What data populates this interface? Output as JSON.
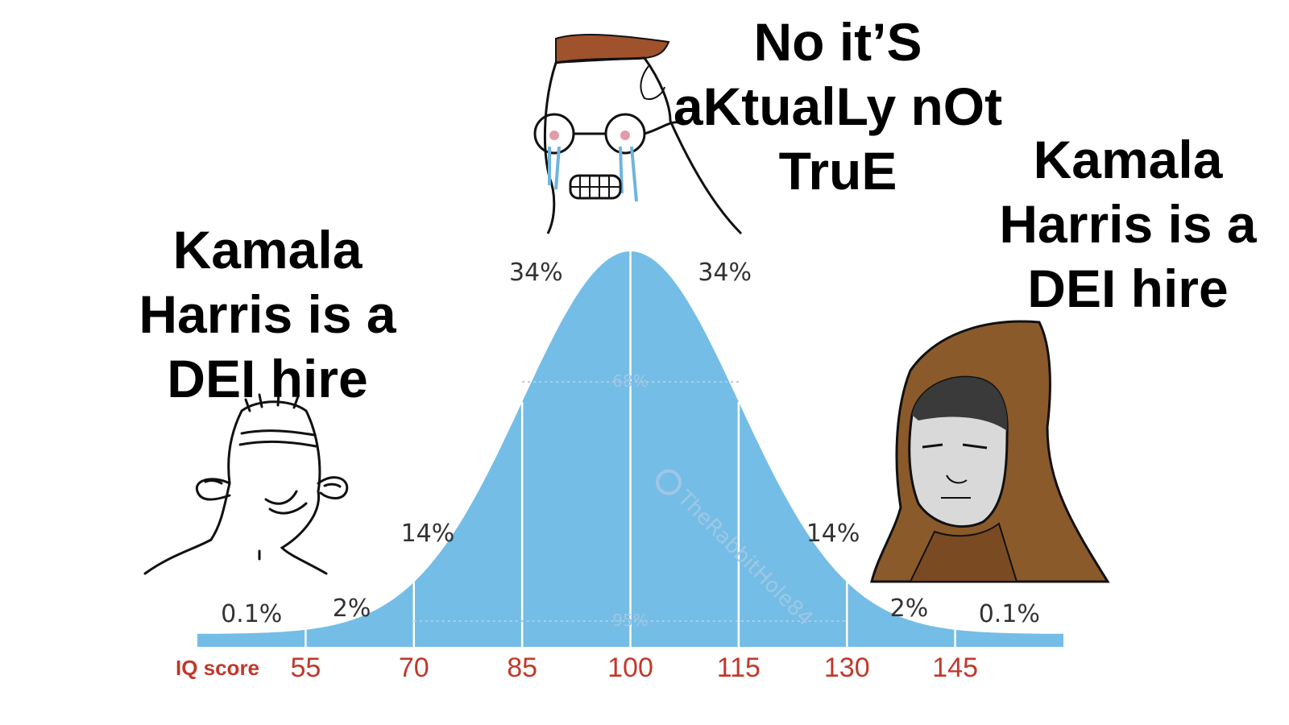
{
  "captions": {
    "left": [
      "Kamala",
      "Harris is a",
      "DEI hire"
    ],
    "middle": [
      "No it’S",
      "aKtualLy nOt",
      "TruE"
    ],
    "right": [
      "Kamala",
      "Harris is a",
      "DEI hire"
    ]
  },
  "chart_data": {
    "type": "area",
    "xlabel": "IQ score",
    "ticks": [
      55,
      70,
      85,
      100,
      115,
      130,
      145
    ],
    "mean": 100,
    "sd": 15,
    "region_percentages": [
      {
        "from": 40,
        "to": 55,
        "label": "0.1%"
      },
      {
        "from": 55,
        "to": 70,
        "label": "2%"
      },
      {
        "from": 70,
        "to": 85,
        "label": "14%"
      },
      {
        "from": 85,
        "to": 100,
        "label": "34%"
      },
      {
        "from": 100,
        "to": 115,
        "label": "34%"
      },
      {
        "from": 115,
        "to": 130,
        "label": "14%"
      },
      {
        "from": 130,
        "to": 145,
        "label": "2%"
      },
      {
        "from": 145,
        "to": 160,
        "label": "0.1%"
      }
    ],
    "inner_labels": {
      "one_sd": "68%",
      "two_sd": "95%"
    },
    "fill_color": "#74bde6",
    "tick_color": "#c0392b"
  },
  "watermark": "TheRabbitHole84",
  "icons": {
    "left": "smiling-wojak-icon",
    "middle": "crying-nerd-wojak-icon",
    "right": "hooded-doomer-icon"
  }
}
